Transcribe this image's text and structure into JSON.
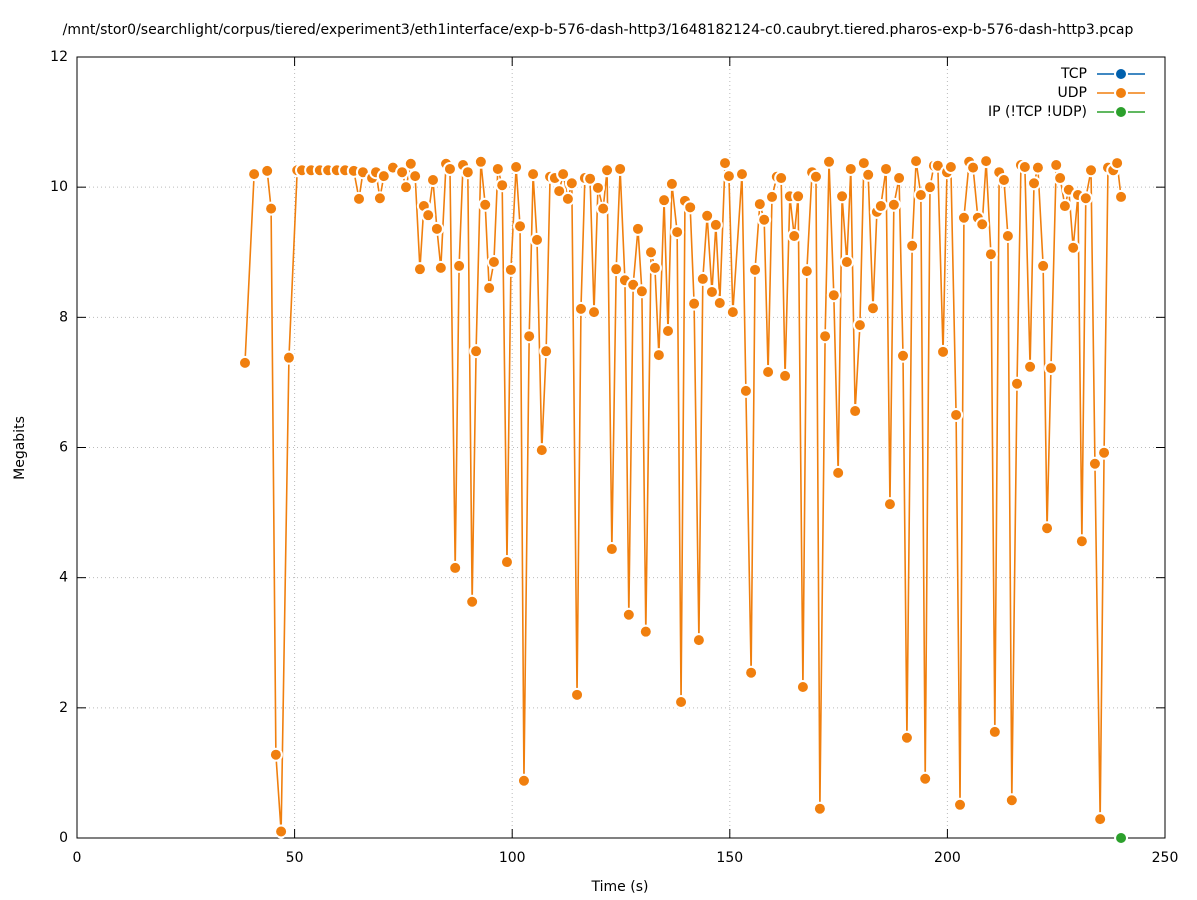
{
  "chart_data": {
    "type": "line",
    "title": "/mnt/stor0/searchlight/corpus/tiered/experiment3/eth1interface/exp-b-576-dash-http3/1648182124-c0.caubryt.tiered.pharos-exp-b-576-dash-http3.pcap",
    "x_label": "Time (s)",
    "y_label": "Megabits",
    "xlim": [
      0,
      250
    ],
    "xticks": [
      0,
      50,
      100,
      150,
      200,
      250
    ],
    "ylim": [
      0,
      12
    ],
    "yticks": [
      0,
      2,
      4,
      6,
      8,
      10,
      12
    ],
    "grid": true,
    "legend": "top-right",
    "series": [
      {
        "name": "TCP",
        "color": "#0060ad",
        "x": [],
        "values": []
      },
      {
        "name": "UDP",
        "color": "#f07f0e",
        "x": [
          38.6,
          40.7,
          43.7,
          44.6,
          45.7,
          46.9,
          48.7,
          50.6,
          51.7,
          53.8,
          55.8,
          57.7,
          59.7,
          61.6,
          63.6,
          64.8,
          65.7,
          67.8,
          68.7,
          69.6,
          70.5,
          72.6,
          74.7,
          75.6,
          76.7,
          77.7,
          78.8,
          79.7,
          80.7,
          81.8,
          82.7,
          83.6,
          84.8,
          85.7,
          86.9,
          87.8,
          88.7,
          89.8,
          90.8,
          91.7,
          92.8,
          93.8,
          94.7,
          95.8,
          96.7,
          97.7,
          98.8,
          99.7,
          100.9,
          101.8,
          102.7,
          103.9,
          104.8,
          105.7,
          106.8,
          107.8,
          108.7,
          109.8,
          110.8,
          111.7,
          112.8,
          113.7,
          114.9,
          115.8,
          116.7,
          117.9,
          118.8,
          119.7,
          120.9,
          121.8,
          122.9,
          123.9,
          124.8,
          125.9,
          126.8,
          127.8,
          128.9,
          129.8,
          130.7,
          131.9,
          132.8,
          133.7,
          134.9,
          135.8,
          136.7,
          137.9,
          138.8,
          139.7,
          140.9,
          141.8,
          142.9,
          143.8,
          144.8,
          145.9,
          146.8,
          147.7,
          148.9,
          149.8,
          150.7,
          152.8,
          153.7,
          154.9,
          155.8,
          156.9,
          157.9,
          158.8,
          159.7,
          160.8,
          161.8,
          162.7,
          163.8,
          164.8,
          165.7,
          166.8,
          167.7,
          168.9,
          169.8,
          170.7,
          171.9,
          172.8,
          173.9,
          174.9,
          175.8,
          176.9,
          177.8,
          178.8,
          179.9,
          180.8,
          181.8,
          182.9,
          183.8,
          184.7,
          185.9,
          186.8,
          187.7,
          188.9,
          189.8,
          190.7,
          191.9,
          192.8,
          193.9,
          194.9,
          196.0,
          196.9,
          197.8,
          199.0,
          199.9,
          200.8,
          202.0,
          202.9,
          203.8,
          205.0,
          205.9,
          207.0,
          208.0,
          208.9,
          210.0,
          210.9,
          211.9,
          213.0,
          213.9,
          214.8,
          216.0,
          216.9,
          217.8,
          219.0,
          219.9,
          220.8,
          222.0,
          222.9,
          223.8,
          225.0,
          225.9,
          227.0,
          227.9,
          228.9,
          230.0,
          230.9,
          231.8,
          233.0,
          233.9,
          235.1,
          236.0,
          236.9,
          238.1,
          239.0,
          239.9
        ],
        "values": [
          7.3,
          10.2,
          10.25,
          9.67,
          1.28,
          0.1,
          7.38,
          10.26,
          10.26,
          10.26,
          10.26,
          10.26,
          10.26,
          10.26,
          10.25,
          9.82,
          10.23,
          10.14,
          10.23,
          9.83,
          10.17,
          10.3,
          10.23,
          10.0,
          10.36,
          10.17,
          8.74,
          9.71,
          9.57,
          10.11,
          9.36,
          8.76,
          10.36,
          10.28,
          4.15,
          8.79,
          10.34,
          10.23,
          3.63,
          7.48,
          10.39,
          9.73,
          8.45,
          8.85,
          10.28,
          10.03,
          4.24,
          8.73,
          10.31,
          9.4,
          0.88,
          7.71,
          10.2,
          9.19,
          5.96,
          7.48,
          10.16,
          10.14,
          9.94,
          10.2,
          9.82,
          10.06,
          2.2,
          8.13,
          10.14,
          10.13,
          8.08,
          9.99,
          9.67,
          10.26,
          4.44,
          8.74,
          10.28,
          8.57,
          3.43,
          8.5,
          9.36,
          8.4,
          3.17,
          9.0,
          8.76,
          7.42,
          9.8,
          7.79,
          10.05,
          9.31,
          2.09,
          9.79,
          9.69,
          8.21,
          3.04,
          8.59,
          9.56,
          8.39,
          9.42,
          8.22,
          10.37,
          10.17,
          8.08,
          10.2,
          6.87,
          2.54,
          8.73,
          9.74,
          9.5,
          7.16,
          9.85,
          10.16,
          10.14,
          7.1,
          9.86,
          9.25,
          9.86,
          2.32,
          8.71,
          10.23,
          10.16,
          0.45,
          7.71,
          10.39,
          8.34,
          5.61,
          9.86,
          8.85,
          10.28,
          6.56,
          7.88,
          10.37,
          10.19,
          8.14,
          9.62,
          9.71,
          10.28,
          5.13,
          9.73,
          10.14,
          7.41,
          1.54,
          9.1,
          10.4,
          9.88,
          0.91,
          10.0,
          10.33,
          10.33,
          7.47,
          10.23,
          10.31,
          6.5,
          0.51,
          9.53,
          10.39,
          10.3,
          9.53,
          9.43,
          10.4,
          8.97,
          1.63,
          10.23,
          10.11,
          9.25,
          0.58,
          6.98,
          10.34,
          10.31,
          7.24,
          10.06,
          10.3,
          8.79,
          4.76,
          7.22,
          10.34,
          10.14,
          9.71,
          9.96,
          9.07,
          9.88,
          4.56,
          9.83,
          10.26,
          5.75,
          0.29,
          5.92,
          10.3,
          10.26,
          10.37,
          9.85
        ]
      },
      {
        "name": "IP (!TCP  !UDP)",
        "color": "#2ca02c",
        "x": [
          239.9
        ],
        "values": [
          0
        ]
      }
    ]
  }
}
